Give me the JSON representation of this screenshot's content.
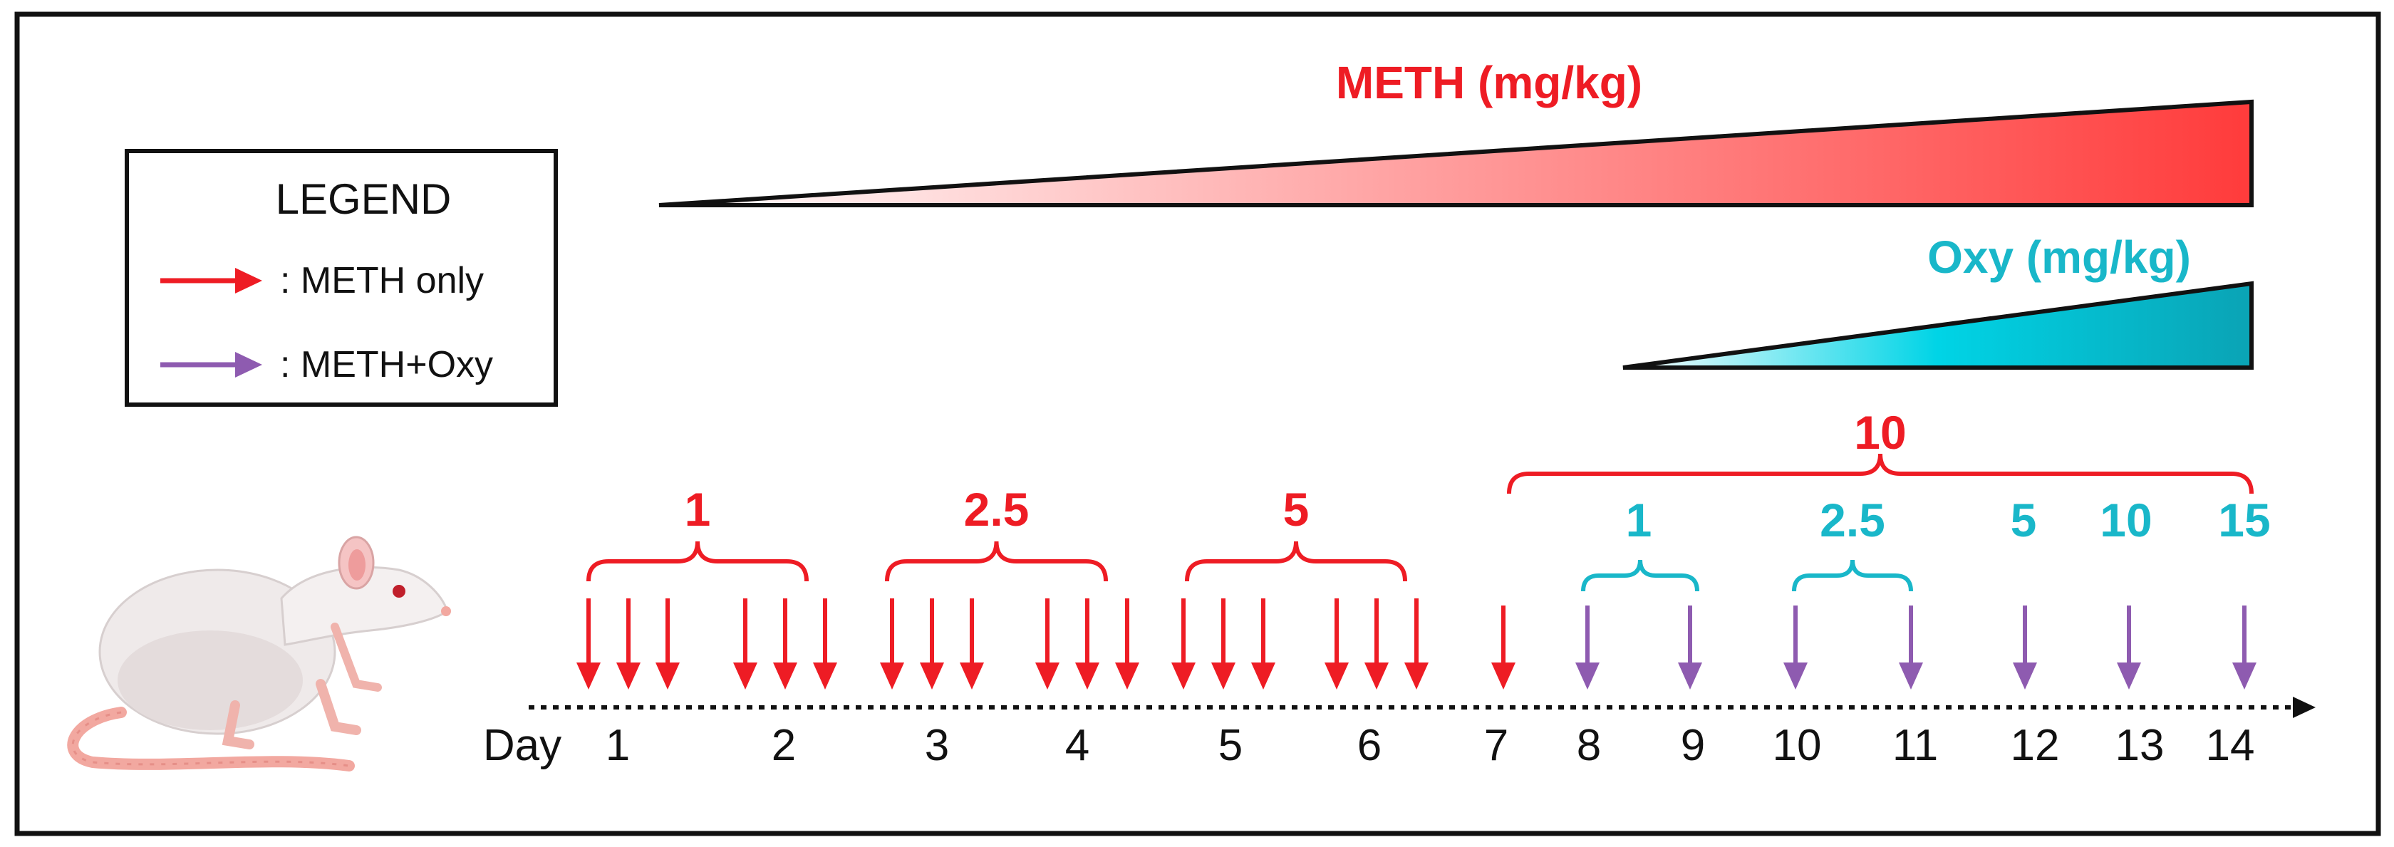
{
  "legend": {
    "title": "LEGEND",
    "items": [
      {
        "label": ": METH only",
        "color": "#ee1c24"
      },
      {
        "label": ": METH+Oxy",
        "color": "#8e5bb0"
      }
    ]
  },
  "meth_ramp": {
    "label": "METH (mg/kg)",
    "color": "#ee1c24"
  },
  "oxy_ramp": {
    "label": "Oxy (mg/kg)",
    "color": "#19b7c9"
  },
  "timeline": {
    "day_label": "Day",
    "days": [
      "1",
      "2",
      "3",
      "4",
      "5",
      "6",
      "7",
      "8",
      "9",
      "10",
      "11",
      "12",
      "13",
      "14"
    ]
  },
  "meth_doses": [
    "1",
    "2.5",
    "5",
    "10"
  ],
  "oxy_doses": [
    "1",
    "2.5",
    "5",
    "10",
    "15"
  ],
  "colors": {
    "meth": "#ee1c24",
    "oxy_arrow": "#8e5bb0",
    "oxy_text": "#19b7c9"
  }
}
